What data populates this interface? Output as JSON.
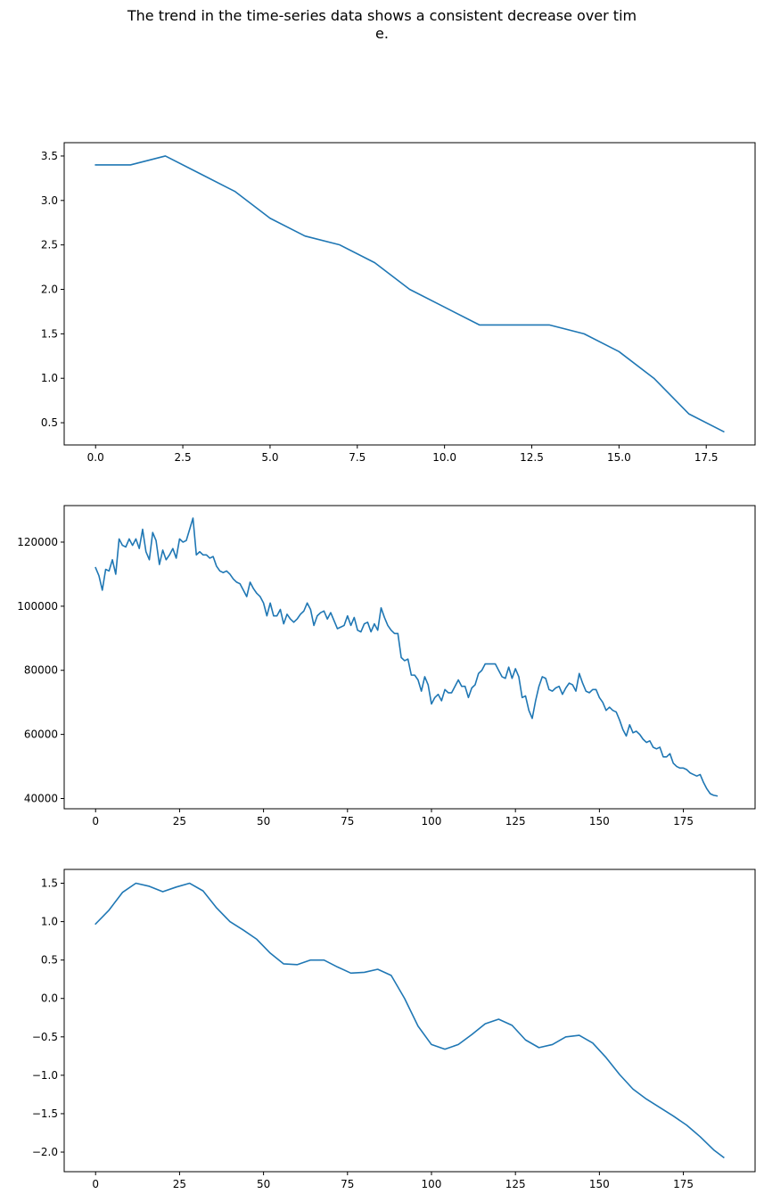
{
  "title_lines": [
    "The trend in the time-series data shows a consistent decrease over tim",
    "e."
  ],
  "chart_data": [
    {
      "type": "line",
      "color": "#1f77b4",
      "title": "",
      "xlabel": "",
      "ylabel": "",
      "grid": false,
      "xlim": [
        -0.9,
        18.9
      ],
      "ylim": [
        0.25,
        3.65
      ],
      "xticks": [
        0,
        2.5,
        5,
        7.5,
        10,
        12.5,
        15,
        17.5
      ],
      "xtick_labels": [
        "0.0",
        "2.5",
        "5.0",
        "7.5",
        "10.0",
        "12.5",
        "15.0",
        "17.5"
      ],
      "yticks": [
        0.5,
        1.0,
        1.5,
        2.0,
        2.5,
        3.0,
        3.5
      ],
      "ytick_labels": [
        "0.5",
        "1.0",
        "1.5",
        "2.0",
        "2.5",
        "3.0",
        "3.5"
      ],
      "x": [
        0,
        1,
        2,
        3,
        4,
        5,
        6,
        7,
        8,
        9,
        10,
        11,
        12,
        13,
        14,
        15,
        16,
        17,
        18
      ],
      "y": [
        3.4,
        3.4,
        3.5,
        3.3,
        3.1,
        2.8,
        2.6,
        2.5,
        2.3,
        2.0,
        1.8,
        1.6,
        1.6,
        1.6,
        1.5,
        1.3,
        1.0,
        0.6,
        0.4
      ]
    },
    {
      "type": "line",
      "color": "#1f77b4",
      "title": "",
      "xlabel": "",
      "ylabel": "",
      "grid": false,
      "xlim": [
        -9.35,
        196.35
      ],
      "ylim": [
        36800,
        131400
      ],
      "xticks": [
        0,
        25,
        50,
        75,
        100,
        125,
        150,
        175
      ],
      "xtick_labels": [
        "0",
        "25",
        "50",
        "75",
        "100",
        "125",
        "150",
        "175"
      ],
      "yticks": [
        40000,
        60000,
        80000,
        100000,
        120000
      ],
      "ytick_labels": [
        "40000",
        "60000",
        "80000",
        "100000",
        "120000"
      ],
      "x_start": 0,
      "x_step": 1,
      "y": [
        112000,
        109500,
        105000,
        111500,
        111000,
        114500,
        110000,
        121000,
        119000,
        118500,
        121000,
        119000,
        121000,
        118000,
        124000,
        117000,
        114500,
        123000,
        120500,
        113000,
        117500,
        114500,
        116000,
        118000,
        115000,
        121000,
        120000,
        120500,
        124000,
        127500,
        116000,
        117000,
        116000,
        116000,
        115000,
        115500,
        112500,
        111000,
        110500,
        111000,
        110000,
        108500,
        107500,
        107000,
        105000,
        103000,
        107500,
        105500,
        104000,
        103000,
        101000,
        97000,
        101000,
        97000,
        97000,
        99000,
        94500,
        97500,
        96000,
        95000,
        96000,
        97500,
        98500,
        101000,
        99000,
        94000,
        97000,
        98000,
        98500,
        96000,
        98000,
        95500,
        93000,
        93500,
        94000,
        97000,
        94000,
        96500,
        92500,
        92000,
        94500,
        95000,
        92000,
        94500,
        92500,
        99500,
        96500,
        94000,
        92500,
        91500,
        91500,
        84000,
        83000,
        83500,
        78500,
        78500,
        77000,
        73500,
        78000,
        75500,
        69500,
        71500,
        72500,
        70500,
        74000,
        73000,
        73000,
        75000,
        77000,
        75000,
        75000,
        71500,
        74500,
        75500,
        79000,
        80000,
        82000,
        82000,
        82000,
        82000,
        80000,
        78000,
        77500,
        81000,
        77500,
        80500,
        78000,
        71500,
        72000,
        67500,
        65000,
        70500,
        75000,
        78000,
        77500,
        74000,
        73500,
        74500,
        75000,
        72500,
        74500,
        76000,
        75500,
        73500,
        79000,
        76000,
        73500,
        73000,
        74000,
        74000,
        71500,
        70000,
        67500,
        68500,
        67500,
        67000,
        64500,
        61500,
        59500,
        63000,
        60500,
        61000,
        60000,
        58500,
        57500,
        58000,
        56000,
        55500,
        56000,
        53000,
        53000,
        54000,
        51000,
        50000,
        49500,
        49500,
        49000,
        48000,
        47500,
        47000,
        47500,
        45000,
        43000,
        41500,
        41000,
        40800
      ]
    },
    {
      "type": "line",
      "color": "#1f77b4",
      "title": "",
      "xlabel": "",
      "ylabel": "",
      "grid": false,
      "xlim": [
        -9.35,
        196.35
      ],
      "ylim": [
        -2.255,
        1.68
      ],
      "xticks": [
        0,
        25,
        50,
        75,
        100,
        125,
        150,
        175
      ],
      "xtick_labels": [
        "0",
        "25",
        "50",
        "75",
        "100",
        "125",
        "150",
        "175"
      ],
      "yticks": [
        1.5,
        1.0,
        0.5,
        0.0,
        -0.5,
        -1.0,
        -1.5,
        -2.0
      ],
      "ytick_labels": [
        "1.5",
        "1.0",
        "0.5",
        "0.0",
        "−0.5",
        "−1.0",
        "−1.5",
        "−2.0"
      ],
      "x": [
        0,
        4,
        8,
        12,
        16,
        20,
        24,
        28,
        32,
        36,
        40,
        44,
        48,
        52,
        56,
        60,
        64,
        68,
        72,
        76,
        80,
        84,
        88,
        92,
        96,
        100,
        104,
        108,
        112,
        116,
        120,
        124,
        128,
        132,
        136,
        140,
        144,
        148,
        152,
        156,
        160,
        164,
        168,
        172,
        176,
        180,
        184,
        187
      ],
      "y": [
        0.97,
        1.15,
        1.38,
        1.5,
        1.46,
        1.39,
        1.45,
        1.5,
        1.4,
        1.18,
        1.0,
        0.89,
        0.77,
        0.59,
        0.45,
        0.44,
        0.5,
        0.5,
        0.41,
        0.33,
        0.34,
        0.38,
        0.3,
        0.0,
        -0.36,
        -0.6,
        -0.66,
        -0.6,
        -0.47,
        -0.33,
        -0.27,
        -0.35,
        -0.54,
        -0.64,
        -0.6,
        -0.5,
        -0.48,
        -0.58,
        -0.77,
        -0.99,
        -1.18,
        -1.31,
        -1.42,
        -1.53,
        -1.65,
        -1.8,
        -1.97,
        -2.07
      ]
    }
  ]
}
